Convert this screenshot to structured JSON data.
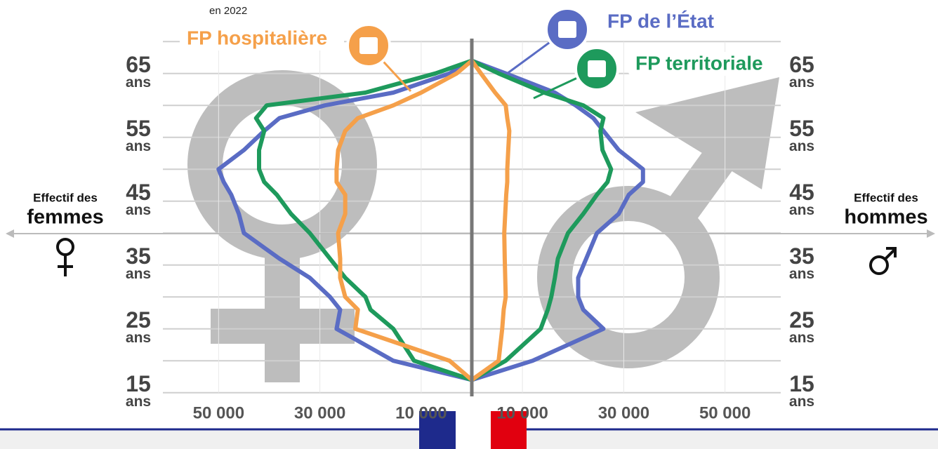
{
  "chart_data": {
    "type": "pyramid-line",
    "subtitle": "en 2022",
    "left_label": [
      "Effectif des",
      "femmes"
    ],
    "right_label": [
      "Effectif des",
      "hommes"
    ],
    "age_unit": "ans",
    "ages": [
      17,
      20,
      25,
      28,
      30,
      33,
      36,
      40,
      43,
      46,
      48,
      50,
      53,
      56,
      58,
      60,
      62,
      65,
      67
    ],
    "series": [
      {
        "name": "FP de l’État",
        "color": "#5a6cc4",
        "women": [
          0,
          15500,
          26700,
          26000,
          28000,
          32000,
          38000,
          45000,
          46000,
          47500,
          49000,
          50000,
          45000,
          41000,
          38000,
          29000,
          15500,
          4400,
          0
        ],
        "men": [
          0,
          12000,
          26000,
          22000,
          21000,
          21000,
          22600,
          24700,
          29000,
          31000,
          33800,
          33800,
          29000,
          26000,
          24000,
          20500,
          16400,
          6700,
          0
        ]
      },
      {
        "name": "FP territoriale",
        "color": "#1e9a5c",
        "women": [
          0,
          11400,
          15500,
          20000,
          21000,
          25000,
          28000,
          32000,
          35700,
          38500,
          41000,
          42000,
          42000,
          41000,
          42600,
          40500,
          21000,
          7200,
          0
        ],
        "men": [
          0,
          6700,
          13600,
          15000,
          15700,
          16400,
          17000,
          19000,
          22000,
          24700,
          26800,
          27500,
          25800,
          25400,
          26000,
          22000,
          14300,
          5300,
          0
        ]
      },
      {
        "name": "FP hospitalière",
        "color": "#f5a04a",
        "women": [
          0,
          4400,
          23000,
          22500,
          25000,
          26000,
          26000,
          26400,
          25000,
          25000,
          26700,
          26700,
          26400,
          25000,
          22500,
          15500,
          10000,
          3000,
          0
        ],
        "men": [
          0,
          5300,
          6000,
          6300,
          6700,
          6600,
          6500,
          6400,
          6600,
          6800,
          7000,
          7000,
          7200,
          7400,
          7000,
          6700,
          4600,
          1800,
          0
        ]
      }
    ],
    "xlim": [
      0,
      61000
    ],
    "xticks": [
      {
        "value": 10000,
        "label": "10 000"
      },
      {
        "value": 30000,
        "label": "30 000"
      },
      {
        "value": 50000,
        "label": "50 000"
      }
    ],
    "ylim": [
      12,
      72
    ],
    "yticks": [
      15,
      25,
      35,
      45,
      55,
      65
    ],
    "ygrid": [
      15,
      20,
      25,
      30,
      35,
      40,
      45,
      50,
      55,
      60,
      65,
      70
    ]
  }
}
